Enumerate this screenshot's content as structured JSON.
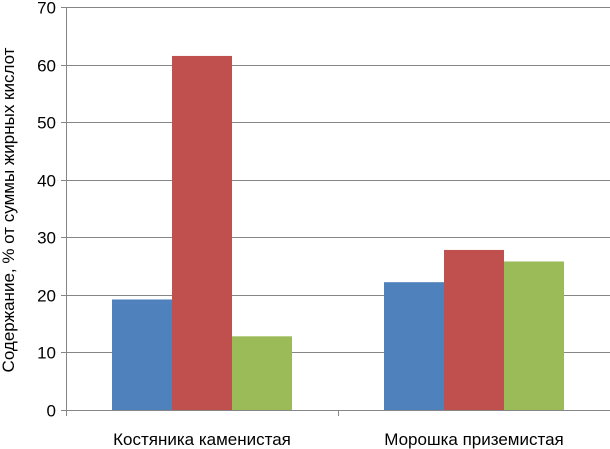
{
  "chart_data": {
    "type": "bar",
    "title": "",
    "xlabel": "",
    "ylabel": "Содержание, % от суммы жирных кислот",
    "ylim": [
      0,
      70
    ],
    "yticks": [
      0,
      10,
      20,
      30,
      40,
      50,
      60,
      70
    ],
    "grid": true,
    "legend": "none",
    "categories": [
      "Костяника каменистая",
      "Морошка приземистая"
    ],
    "series": [
      {
        "color": "#4F81BD",
        "values": [
          19.2,
          22.2
        ]
      },
      {
        "color": "#C0504D",
        "values": [
          61.5,
          27.8
        ]
      },
      {
        "color": "#9BBB59",
        "values": [
          12.8,
          25.8
        ]
      }
    ]
  }
}
